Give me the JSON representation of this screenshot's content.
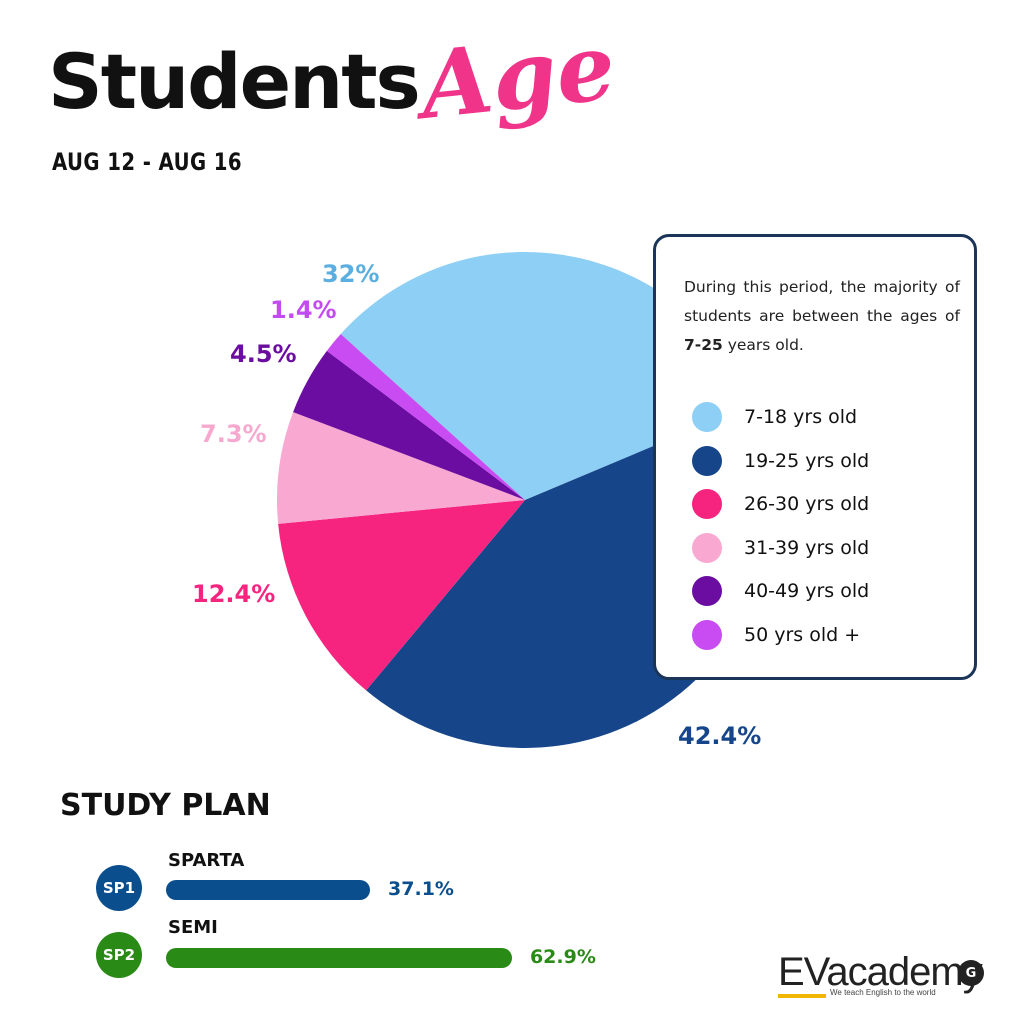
{
  "header": {
    "title_main": "Students",
    "title_accent": "Age",
    "date_range": "AUG 12 - AUG 16"
  },
  "legend": {
    "description_before": "During this period, the majority of students are between the ages of ",
    "description_bold": "7-25",
    "description_after": " years old."
  },
  "chart_data": {
    "type": "pie",
    "categories": [
      "7-18 yrs old",
      "19-25 yrs old",
      "26-30 yrs old",
      "31-39 yrs old",
      "40-49 yrs old",
      "50 yrs old +"
    ],
    "values": [
      32,
      42.4,
      12.4,
      7.3,
      4.5,
      1.4
    ],
    "value_labels": [
      "32%",
      "42.4%",
      "12.4%",
      "7.3%",
      "4.5%",
      "1.4%"
    ],
    "colors": [
      "#8ecff5",
      "#17458a",
      "#f7247f",
      "#f9a8d2",
      "#6a0da0",
      "#c94cf2"
    ],
    "label_colors": [
      "#5aaee0",
      "#17458a",
      "#f7247f",
      "#f7a8cf",
      "#6a0da0",
      "#c24cf0"
    ],
    "legend_placement": "right"
  },
  "study_plan": {
    "title": "STUDY PLAN",
    "plans": [
      {
        "badge": "SP1",
        "name": "SPARTA",
        "value": 37.1,
        "value_label": "37.1%",
        "color": "#0b4e8e"
      },
      {
        "badge": "SP2",
        "name": "SEMI",
        "value": 62.9,
        "value_label": "62.9%",
        "color": "#2a8a16"
      }
    ]
  },
  "logo": {
    "ev": "EV",
    "rest": "academy",
    "tagline": "We teach English to the world",
    "mark": "G"
  }
}
